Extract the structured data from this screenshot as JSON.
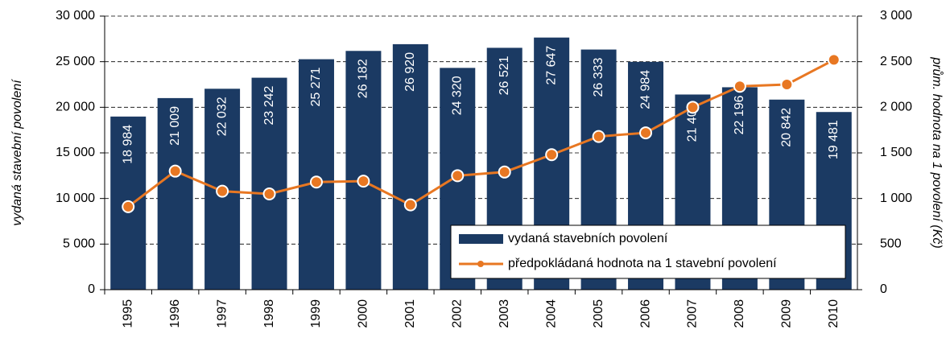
{
  "chart_data": {
    "type": "bar_line",
    "y_label": "vydaná stavební povolení",
    "y2_label": "prům. hodnota na 1 povolení (Kč)",
    "categories": [
      "1995",
      "1996",
      "1997",
      "1998",
      "1999",
      "2000",
      "2001",
      "2002",
      "2003",
      "2004",
      "2005",
      "2006",
      "2007",
      "2008",
      "2009",
      "2010"
    ],
    "series": [
      {
        "name": "vydaná stavebních povolení",
        "type": "bar",
        "color": "#1b3a63",
        "values": [
          18984,
          21009,
          22032,
          23242,
          25271,
          26182,
          26920,
          24320,
          26521,
          27647,
          26333,
          24984,
          21400,
          22196,
          20842,
          19481
        ],
        "value_labels": [
          "18 984",
          "21 009",
          "22 032",
          "23 242",
          "25 271",
          "26 182",
          "26 920",
          "24 320",
          "26 521",
          "27 647",
          "26 333",
          "24 984",
          "21 400",
          "22 196",
          "20 842",
          "19 481"
        ]
      },
      {
        "name": "předpokládaná hodnota na 1 stavební povolení",
        "type": "line",
        "axis": "y2",
        "color": "#e87722",
        "values": [
          910,
          1300,
          1080,
          1050,
          1180,
          1190,
          930,
          1250,
          1290,
          1480,
          1680,
          1720,
          2000,
          2230,
          2250,
          2520
        ]
      }
    ],
    "ylim": [
      0,
      30000
    ],
    "yticks": [
      {
        "value": 0,
        "label": "0"
      },
      {
        "value": 5000,
        "label": "5 000"
      },
      {
        "value": 10000,
        "label": "10 000"
      },
      {
        "value": 15000,
        "label": "15 000"
      },
      {
        "value": 20000,
        "label": "20 000"
      },
      {
        "value": 25000,
        "label": "25 000"
      },
      {
        "value": 30000,
        "label": "30 000"
      }
    ],
    "y2lim": [
      0,
      3000
    ],
    "y2ticks": [
      0,
      500,
      {
        "value": 1000,
        "label": "1 000"
      },
      {
        "value": 1500,
        "label": "1 500"
      },
      {
        "value": 2000,
        "label": "2 000"
      },
      {
        "value": 2500,
        "label": "2 500"
      },
      {
        "value": 3000,
        "label": "3 000"
      }
    ],
    "grid": true,
    "legend": "lower right"
  }
}
